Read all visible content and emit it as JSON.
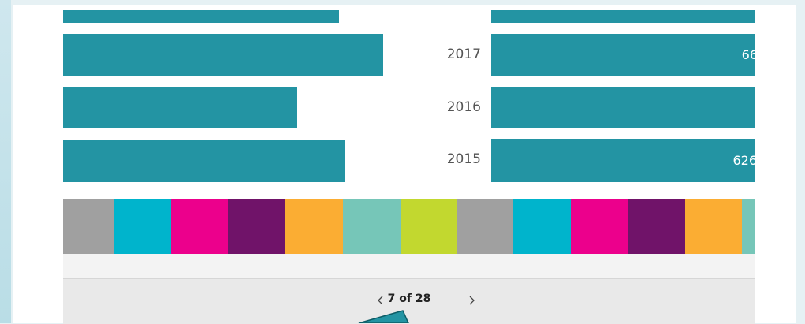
{
  "rows": [
    {
      "year": "2017",
      "value_label": "66"
    },
    {
      "year": "2016"
    },
    {
      "year": "2015",
      "value_label": "626"
    }
  ],
  "pager": {
    "label": "7 of 28"
  }
}
